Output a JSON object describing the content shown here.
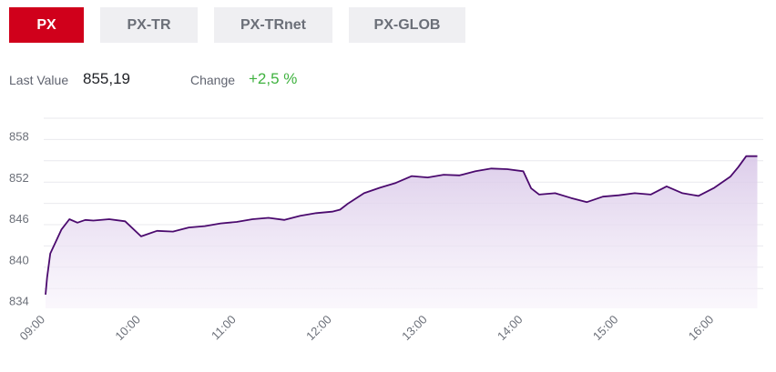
{
  "tabs": [
    {
      "label": "PX",
      "active": true
    },
    {
      "label": "PX-TR",
      "active": false
    },
    {
      "label": "PX-TRnet",
      "active": false
    },
    {
      "label": "PX-GLOB",
      "active": false
    }
  ],
  "stats": {
    "last_value_label": "Last Value",
    "last_value": "855,19",
    "change_label": "Change",
    "change_value": "+2,5 %"
  },
  "colors": {
    "accent": "#d0001b",
    "line": "#4b0a6e",
    "fill": "#e4d9ee",
    "change_positive": "#3fb23f"
  },
  "chart_data": {
    "type": "area",
    "title": "",
    "xlabel": "",
    "ylabel": "",
    "ylim": [
      833,
      861
    ],
    "y_ticks": [
      "834",
      "840",
      "846",
      "852",
      "858"
    ],
    "x_ticks": [
      "09:00",
      "10:00",
      "11:00",
      "12:00",
      "13:00",
      "14:00",
      "15:00",
      "16:00"
    ],
    "grid": true,
    "series": [
      {
        "name": "",
        "x": [
          "09:00",
          "09:01",
          "09:03",
          "09:06",
          "09:10",
          "09:15",
          "09:20",
          "09:25",
          "09:30",
          "09:40",
          "09:50",
          "10:00",
          "10:10",
          "10:20",
          "10:30",
          "10:40",
          "10:50",
          "11:00",
          "11:10",
          "11:20",
          "11:30",
          "11:40",
          "11:50",
          "12:00",
          "12:05",
          "12:10",
          "12:20",
          "12:30",
          "12:40",
          "12:50",
          "13:00",
          "13:10",
          "13:20",
          "13:30",
          "13:40",
          "13:50",
          "14:00",
          "14:05",
          "14:10",
          "14:20",
          "14:30",
          "14:40",
          "14:50",
          "15:00",
          "15:10",
          "15:20",
          "15:30",
          "15:40",
          "15:50",
          "16:00",
          "16:10",
          "16:15",
          "16:20",
          "16:27"
        ],
        "values": [
          835.0,
          837.5,
          841.0,
          842.5,
          844.5,
          846.0,
          845.5,
          845.9,
          845.8,
          846.0,
          845.7,
          843.5,
          844.3,
          844.2,
          844.8,
          845.0,
          845.4,
          845.6,
          846.0,
          846.2,
          845.9,
          846.5,
          846.9,
          847.1,
          847.4,
          848.3,
          849.8,
          850.6,
          851.3,
          852.3,
          852.1,
          852.5,
          852.4,
          853.0,
          853.4,
          853.3,
          853.0,
          850.5,
          849.6,
          849.8,
          849.1,
          848.5,
          849.3,
          849.5,
          849.8,
          849.6,
          850.8,
          849.8,
          849.4,
          850.6,
          852.2,
          853.6,
          855.2,
          855.2
        ]
      }
    ]
  }
}
